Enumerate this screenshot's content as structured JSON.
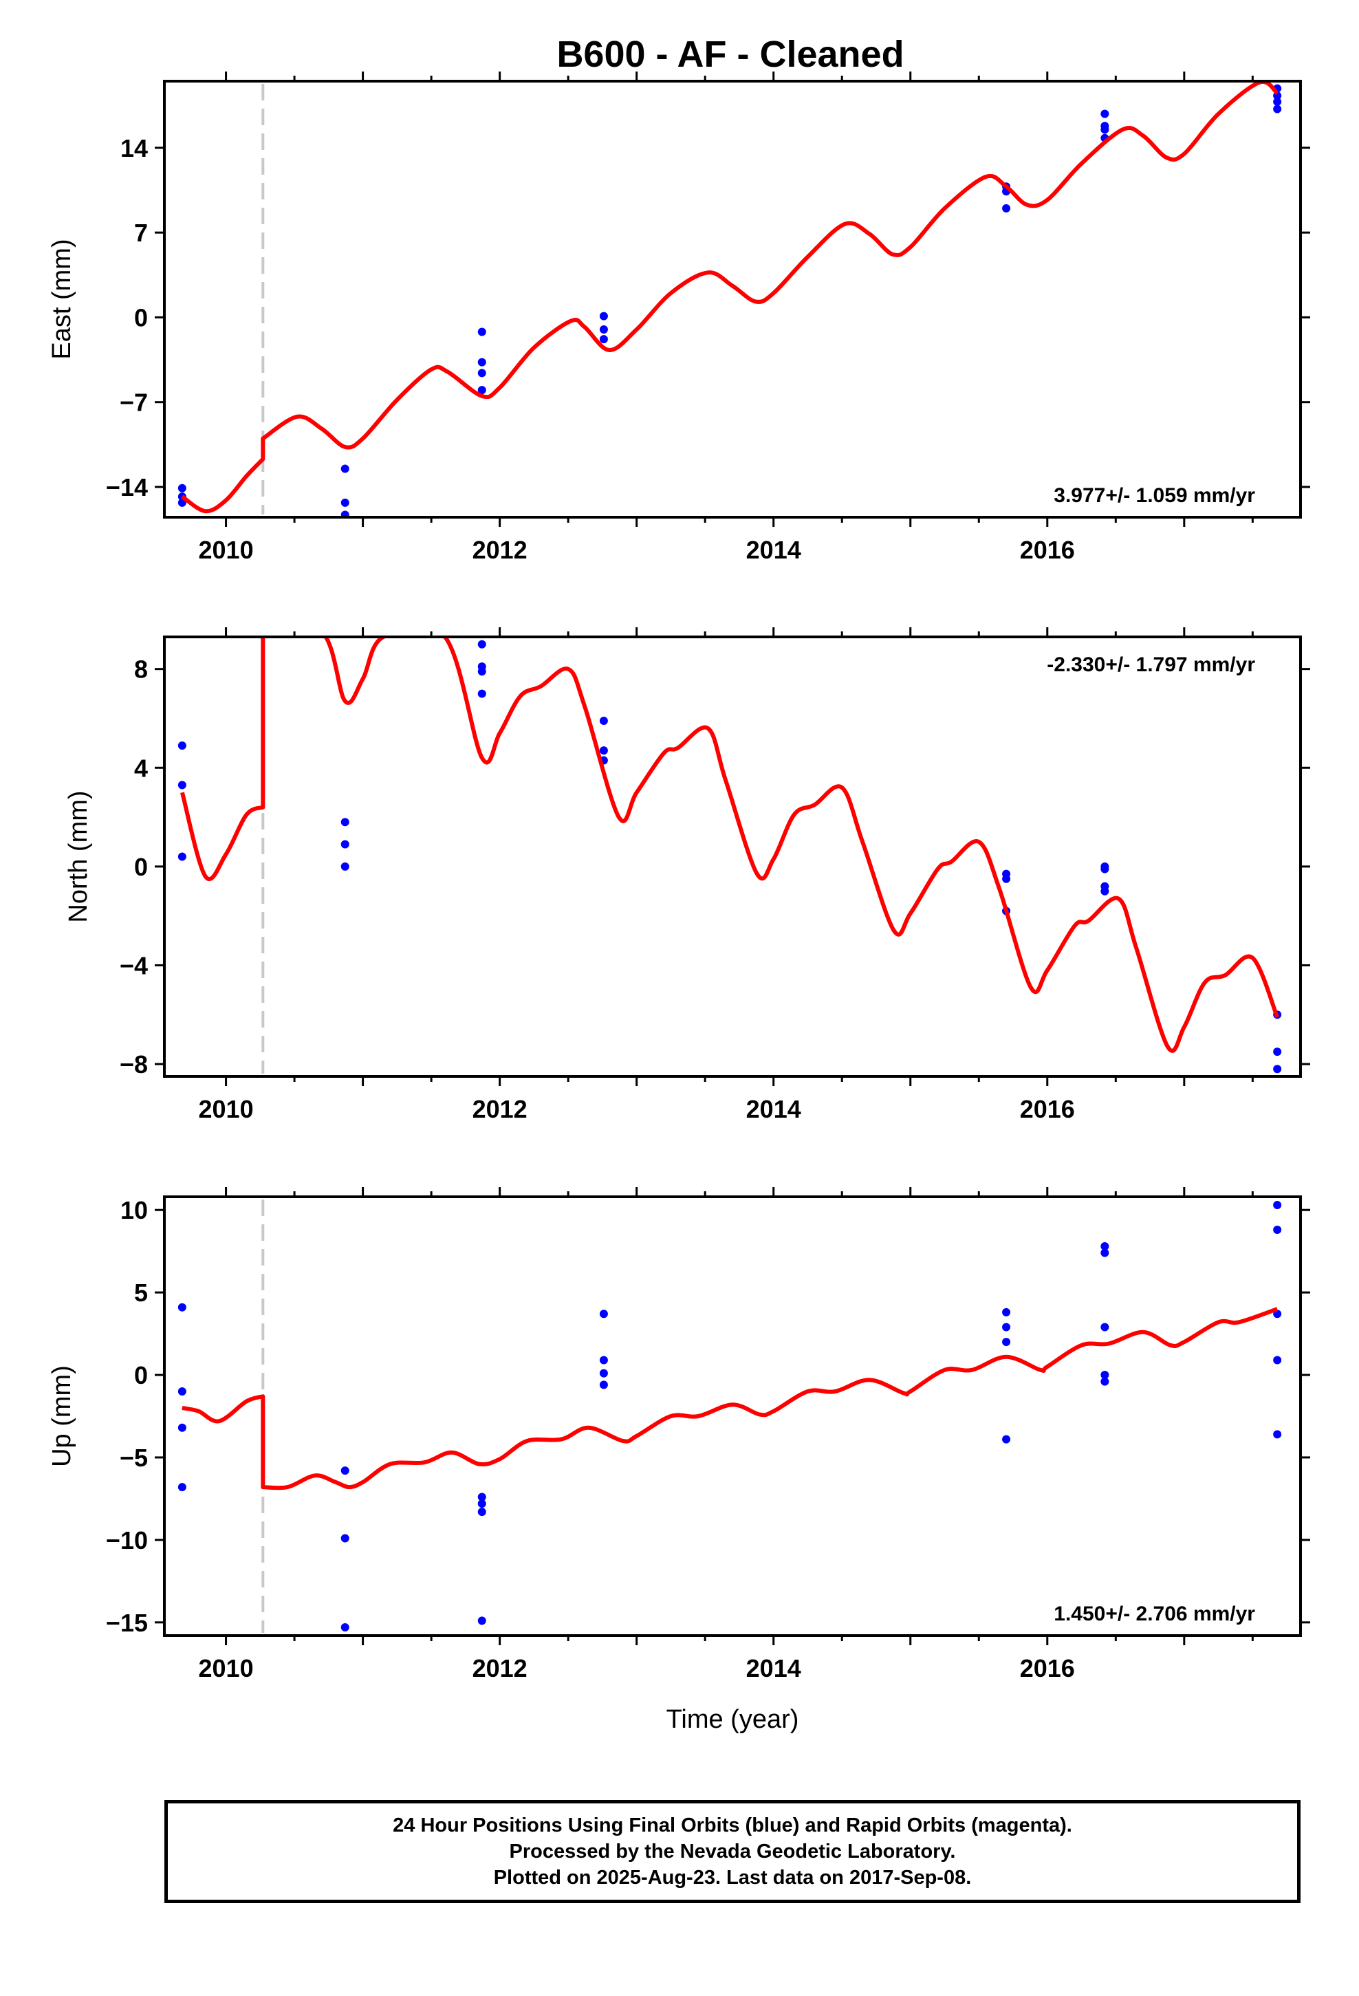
{
  "title": "B600  - AF - Cleaned",
  "chart_data": [
    {
      "type": "scatter",
      "ylabel": "East (mm)",
      "xlim": [
        2009.55,
        2017.85
      ],
      "ylim": [
        -16.5,
        19.5
      ],
      "xticks": [
        2010,
        2012,
        2014,
        2016
      ],
      "yticks": [
        -14,
        -7,
        0,
        7,
        14
      ],
      "rate_label": "3.977+/- 1.059 mm/yr",
      "rate_position": "bottom-right",
      "offset_epoch": 2010.27,
      "points": [
        [
          2009.68,
          -14.1
        ],
        [
          2009.68,
          -14.8
        ],
        [
          2009.68,
          -15.3
        ],
        [
          2010.87,
          -12.5
        ],
        [
          2010.87,
          -15.3
        ],
        [
          2010.87,
          -16.3
        ],
        [
          2011.87,
          -1.2
        ],
        [
          2011.87,
          -3.7
        ],
        [
          2011.87,
          -4.6
        ],
        [
          2011.87,
          -6.0
        ],
        [
          2012.76,
          0.1
        ],
        [
          2012.76,
          -1.0
        ],
        [
          2012.76,
          -1.8
        ],
        [
          2015.7,
          10.8
        ],
        [
          2015.7,
          10.4
        ],
        [
          2015.7,
          9.0
        ],
        [
          2016.42,
          16.8
        ],
        [
          2016.42,
          15.8
        ],
        [
          2016.42,
          15.5
        ],
        [
          2016.42,
          14.8
        ],
        [
          2017.68,
          18.9
        ],
        [
          2017.68,
          18.3
        ],
        [
          2017.68,
          17.8
        ],
        [
          2017.68,
          17.2
        ]
      ],
      "model_curve": [
        [
          2009.68,
          -14.8
        ],
        [
          2009.85,
          -16.0
        ],
        [
          2010.0,
          -15.1
        ],
        [
          2010.15,
          -13.1
        ],
        [
          2010.27,
          -11.7
        ],
        [
          2010.27,
          -10.0
        ],
        [
          2010.52,
          -8.2
        ],
        [
          2010.7,
          -9.2
        ],
        [
          2010.87,
          -10.7
        ],
        [
          2011.0,
          -10.0
        ],
        [
          2011.25,
          -6.8
        ],
        [
          2011.5,
          -4.3
        ],
        [
          2011.62,
          -4.5
        ],
        [
          2011.87,
          -6.5
        ],
        [
          2012.0,
          -5.8
        ],
        [
          2012.25,
          -2.5
        ],
        [
          2012.52,
          -0.3
        ],
        [
          2012.62,
          -0.8
        ],
        [
          2012.8,
          -2.7
        ],
        [
          2013.0,
          -1.0
        ],
        [
          2013.25,
          2.0
        ],
        [
          2013.52,
          3.7
        ],
        [
          2013.7,
          2.6
        ],
        [
          2013.87,
          1.3
        ],
        [
          2014.0,
          2.0
        ],
        [
          2014.25,
          5.0
        ],
        [
          2014.52,
          7.7
        ],
        [
          2014.7,
          6.9
        ],
        [
          2014.87,
          5.2
        ],
        [
          2015.0,
          5.8
        ],
        [
          2015.25,
          9.0
        ],
        [
          2015.55,
          11.6
        ],
        [
          2015.7,
          10.8
        ],
        [
          2015.85,
          9.3
        ],
        [
          2016.0,
          9.7
        ],
        [
          2016.25,
          12.7
        ],
        [
          2016.55,
          15.5
        ],
        [
          2016.7,
          15.0
        ],
        [
          2016.87,
          13.2
        ],
        [
          2017.0,
          13.5
        ],
        [
          2017.25,
          16.8
        ],
        [
          2017.55,
          19.4
        ],
        [
          2017.68,
          18.5
        ]
      ]
    },
    {
      "type": "scatter",
      "ylabel": "North (mm)",
      "xlim": [
        2009.55,
        2017.85
      ],
      "ylim": [
        -8.5,
        9.3
      ],
      "xticks": [
        2010,
        2012,
        2014,
        2016
      ],
      "yticks": [
        -8,
        -4,
        0,
        4,
        8
      ],
      "rate_label": "-2.330+/- 1.797 mm/yr",
      "rate_position": "top-right",
      "offset_epoch": 2010.27,
      "points": [
        [
          2009.68,
          4.9
        ],
        [
          2009.68,
          3.3
        ],
        [
          2009.68,
          0.4
        ],
        [
          2010.87,
          1.8
        ],
        [
          2010.87,
          0.9
        ],
        [
          2010.87,
          0.0
        ],
        [
          2011.87,
          9.0
        ],
        [
          2011.87,
          8.1
        ],
        [
          2011.87,
          7.9
        ],
        [
          2011.87,
          7.0
        ],
        [
          2012.76,
          5.9
        ],
        [
          2012.76,
          4.7
        ],
        [
          2012.76,
          4.3
        ],
        [
          2015.7,
          -0.3
        ],
        [
          2015.7,
          -0.5
        ],
        [
          2015.7,
          -1.8
        ],
        [
          2016.42,
          0.0
        ],
        [
          2016.42,
          -0.1
        ],
        [
          2016.42,
          -0.8
        ],
        [
          2016.42,
          -1.0
        ],
        [
          2017.68,
          -6.0
        ],
        [
          2017.68,
          -7.5
        ],
        [
          2017.68,
          -8.2
        ]
      ],
      "model_curve": [
        [
          2009.68,
          3.0
        ],
        [
          2009.85,
          -0.4
        ],
        [
          2010.0,
          0.5
        ],
        [
          2010.15,
          2.1
        ],
        [
          2010.27,
          2.4
        ],
        [
          2010.27,
          9.5
        ],
        [
          2010.7,
          9.5
        ],
        [
          2010.87,
          6.7
        ],
        [
          2011.0,
          7.6
        ],
        [
          2011.15,
          9.3
        ],
        [
          2011.6,
          9.3
        ],
        [
          2011.87,
          4.4
        ],
        [
          2012.0,
          5.4
        ],
        [
          2012.15,
          6.9
        ],
        [
          2012.3,
          7.3
        ],
        [
          2012.5,
          8.0
        ],
        [
          2012.62,
          6.5
        ],
        [
          2012.87,
          2.0
        ],
        [
          2013.0,
          3.0
        ],
        [
          2013.2,
          4.6
        ],
        [
          2013.3,
          4.8
        ],
        [
          2013.52,
          5.6
        ],
        [
          2013.65,
          3.5
        ],
        [
          2013.88,
          -0.3
        ],
        [
          2014.0,
          0.3
        ],
        [
          2014.15,
          2.1
        ],
        [
          2014.3,
          2.5
        ],
        [
          2014.5,
          3.2
        ],
        [
          2014.65,
          1.0
        ],
        [
          2014.88,
          -2.6
        ],
        [
          2015.0,
          -1.9
        ],
        [
          2015.2,
          -0.1
        ],
        [
          2015.3,
          0.2
        ],
        [
          2015.5,
          1.0
        ],
        [
          2015.65,
          -0.9
        ],
        [
          2015.88,
          -4.9
        ],
        [
          2016.0,
          -4.2
        ],
        [
          2016.2,
          -2.4
        ],
        [
          2016.3,
          -2.2
        ],
        [
          2016.52,
          -1.3
        ],
        [
          2016.65,
          -3.3
        ],
        [
          2016.88,
          -7.3
        ],
        [
          2017.0,
          -6.5
        ],
        [
          2017.15,
          -4.7
        ],
        [
          2017.3,
          -4.4
        ],
        [
          2017.5,
          -3.7
        ],
        [
          2017.68,
          -6.1
        ]
      ]
    },
    {
      "type": "scatter",
      "ylabel": "Up (mm)",
      "xlabel": "Time (year)",
      "xlim": [
        2009.55,
        2017.85
      ],
      "ylim": [
        -15.8,
        10.8
      ],
      "xticks": [
        2010,
        2012,
        2014,
        2016
      ],
      "yticks": [
        -15,
        -10,
        -5,
        0,
        5,
        10
      ],
      "rate_label": "1.450+/- 2.706 mm/yr",
      "rate_position": "bottom-right",
      "offset_epoch": 2010.27,
      "points": [
        [
          2009.68,
          4.1
        ],
        [
          2009.68,
          -1.0
        ],
        [
          2009.68,
          -3.2
        ],
        [
          2009.68,
          -6.8
        ],
        [
          2010.87,
          -5.8
        ],
        [
          2010.87,
          -9.9
        ],
        [
          2010.87,
          -15.3
        ],
        [
          2011.87,
          -7.4
        ],
        [
          2011.87,
          -7.8
        ],
        [
          2011.87,
          -8.3
        ],
        [
          2011.87,
          -14.9
        ],
        [
          2012.76,
          3.7
        ],
        [
          2012.76,
          0.9
        ],
        [
          2012.76,
          0.1
        ],
        [
          2012.76,
          -0.6
        ],
        [
          2015.7,
          3.8
        ],
        [
          2015.7,
          2.9
        ],
        [
          2015.7,
          2.0
        ],
        [
          2015.7,
          -3.9
        ],
        [
          2016.42,
          7.8
        ],
        [
          2016.42,
          7.4
        ],
        [
          2016.42,
          2.9
        ],
        [
          2016.42,
          0.0
        ],
        [
          2016.42,
          -0.4
        ],
        [
          2017.68,
          10.3
        ],
        [
          2017.68,
          8.8
        ],
        [
          2017.68,
          3.7
        ],
        [
          2017.68,
          0.9
        ],
        [
          2017.68,
          -3.6
        ]
      ],
      "model_curve": [
        [
          2009.68,
          -2.0
        ],
        [
          2009.8,
          -2.2
        ],
        [
          2009.95,
          -2.8
        ],
        [
          2010.15,
          -1.6
        ],
        [
          2010.27,
          -1.3
        ],
        [
          2010.27,
          -6.8
        ],
        [
          2010.45,
          -6.8
        ],
        [
          2010.65,
          -6.1
        ],
        [
          2010.8,
          -6.5
        ],
        [
          2010.9,
          -6.8
        ],
        [
          2011.0,
          -6.5
        ],
        [
          2011.2,
          -5.4
        ],
        [
          2011.45,
          -5.3
        ],
        [
          2011.65,
          -4.7
        ],
        [
          2011.85,
          -5.4
        ],
        [
          2012.0,
          -5.1
        ],
        [
          2012.2,
          -4.0
        ],
        [
          2012.45,
          -3.9
        ],
        [
          2012.65,
          -3.2
        ],
        [
          2012.9,
          -4.0
        ],
        [
          2013.0,
          -3.7
        ],
        [
          2013.25,
          -2.5
        ],
        [
          2013.45,
          -2.5
        ],
        [
          2013.7,
          -1.8
        ],
        [
          2013.9,
          -2.4
        ],
        [
          2014.0,
          -2.2
        ],
        [
          2014.25,
          -1.0
        ],
        [
          2014.45,
          -1.0
        ],
        [
          2014.7,
          -0.3
        ],
        [
          2014.95,
          -1.1
        ],
        [
          2015.0,
          -1.0
        ],
        [
          2015.25,
          0.3
        ],
        [
          2015.45,
          0.3
        ],
        [
          2015.7,
          1.1
        ],
        [
          2015.95,
          0.3
        ],
        [
          2016.0,
          0.5
        ],
        [
          2016.25,
          1.8
        ],
        [
          2016.45,
          1.9
        ],
        [
          2016.7,
          2.6
        ],
        [
          2016.9,
          1.8
        ],
        [
          2017.0,
          2.0
        ],
        [
          2017.25,
          3.2
        ],
        [
          2017.4,
          3.2
        ],
        [
          2017.68,
          4.0
        ]
      ]
    }
  ],
  "footer": {
    "line1": "24 Hour Positions Using Final Orbits (blue) and Rapid Orbits (magenta).",
    "line2": "Processed by the Nevada Geodetic Laboratory.",
    "line3": "Plotted on 2025-Aug-23. Last data on 2017-Sep-08."
  },
  "colors": {
    "points": "#0000ff",
    "model": "#ff0000",
    "offset_line": "#c8c8c8",
    "frame": "#000000"
  }
}
